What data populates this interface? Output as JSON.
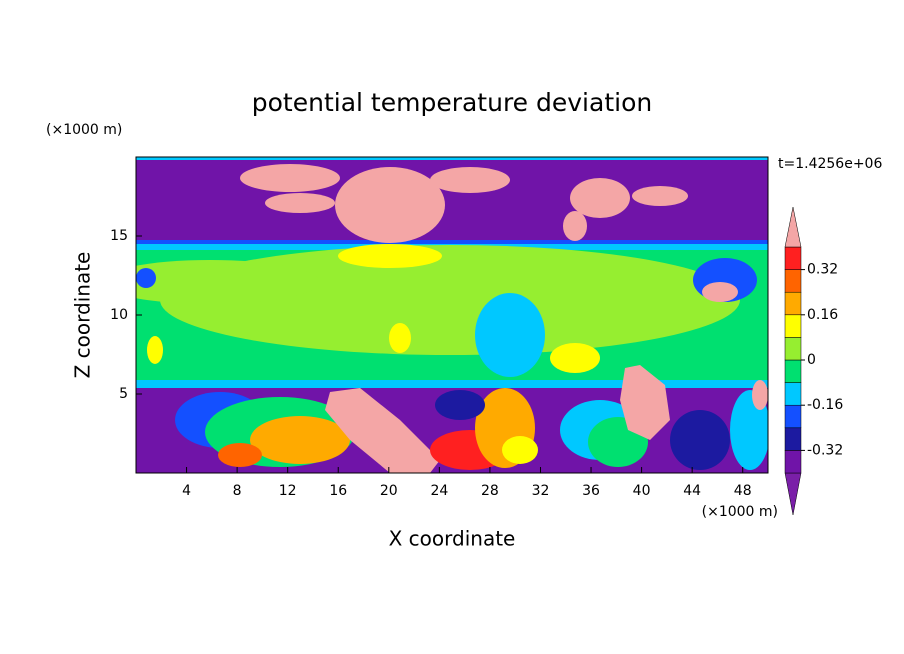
{
  "chart_data": {
    "type": "contour",
    "title": "potential temperature deviation",
    "x_label": "X coordinate",
    "y_label": "Z coordinate",
    "x_unit": "(×1000 m)",
    "y_unit": "(×1000 m)",
    "annotation": "t=1.4256e+06",
    "xlim": [
      0,
      50
    ],
    "xticks": [
      4,
      8,
      12,
      16,
      20,
      24,
      28,
      32,
      36,
      40,
      44,
      48
    ],
    "ylim": [
      0,
      20
    ],
    "yticks": [
      5,
      10,
      15
    ],
    "colorbar": {
      "levels": [
        -0.4,
        -0.32,
        -0.24,
        -0.16,
        -0.08,
        0,
        0.08,
        0.16,
        0.24,
        0.32,
        0.4
      ],
      "ticks": [
        {
          "value": -0.32,
          "label": "-0.32"
        },
        {
          "value": -0.16,
          "label": "-0.16"
        },
        0,
        0.16,
        0.32
      ],
      "colors": [
        "#7a1fa8",
        "#7014a8",
        "#1c1aa0",
        "#1450ff",
        "#00c8ff",
        "#00e070",
        "#96ee30",
        "#ffff00",
        "#ffaa00",
        "#ff6400",
        "#ff2020",
        "#f4a6a6"
      ]
    }
  }
}
